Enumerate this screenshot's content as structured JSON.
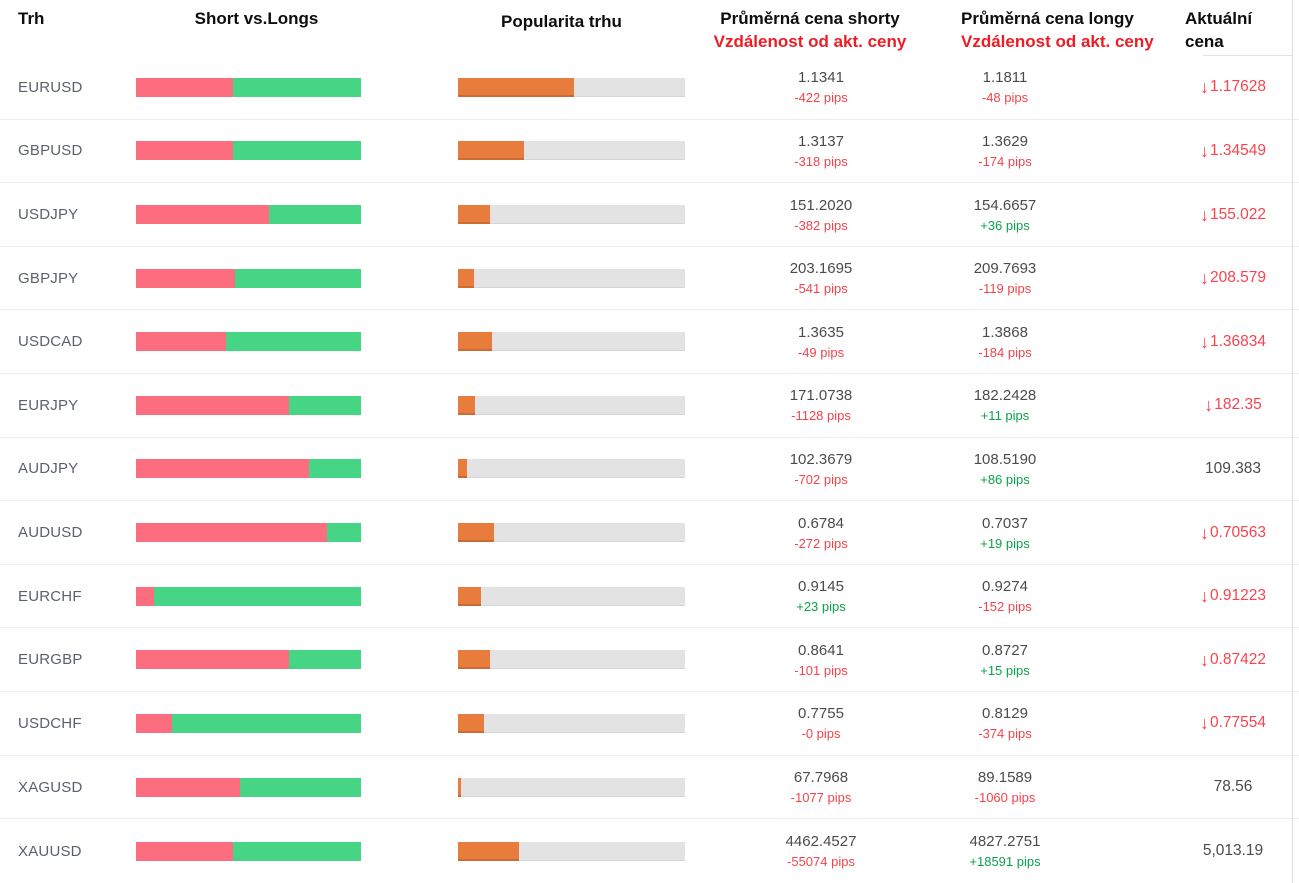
{
  "header": {
    "market": "Trh",
    "short_vs_longs": "Short vs.Longs",
    "popularity": "Popularita trhu",
    "avg_short_line1": "Průměrná cena shorty",
    "avg_short_line2": "Vzdálenost od akt. ceny",
    "avg_long_line1": "Průměrná cena longy",
    "avg_long_line2": "Vzdálenost od akt. ceny",
    "current_line1": "Aktuální",
    "current_line2": "cena"
  },
  "icons": {
    "down_arrow": "↓"
  },
  "colors": {
    "short_bar": "#fb6d7f",
    "long_bar": "#46d584",
    "popularity_bar": "#e87c3d",
    "bar_track": "#e3e3e3",
    "negative_pips": "#f4434b",
    "positive_pips": "#09a24e",
    "price_down": "#f9434e",
    "price_neutral": "#4b4b4b",
    "header_red": "#ee1c25"
  },
  "rows": [
    {
      "market": "EURUSD",
      "short_pct": 43,
      "popularity_pct": 51,
      "avg_short_price": "1.1341",
      "short_distance": "-422 pips",
      "short_distance_color": "red",
      "avg_long_price": "1.1811",
      "long_distance": "-48 pips",
      "long_distance_color": "red",
      "current_price": "1.17628",
      "current_trend": "down"
    },
    {
      "market": "GBPUSD",
      "short_pct": 43,
      "popularity_pct": 29,
      "avg_short_price": "1.3137",
      "short_distance": "-318 pips",
      "short_distance_color": "red",
      "avg_long_price": "1.3629",
      "long_distance": "-174 pips",
      "long_distance_color": "red",
      "current_price": "1.34549",
      "current_trend": "down"
    },
    {
      "market": "USDJPY",
      "short_pct": 59,
      "popularity_pct": 14,
      "avg_short_price": "151.2020",
      "short_distance": "-382 pips",
      "short_distance_color": "red",
      "avg_long_price": "154.6657",
      "long_distance": "+36 pips",
      "long_distance_color": "green",
      "current_price": "155.022",
      "current_trend": "down"
    },
    {
      "market": "GBPJPY",
      "short_pct": 44,
      "popularity_pct": 7,
      "avg_short_price": "203.1695",
      "short_distance": "-541 pips",
      "short_distance_color": "red",
      "avg_long_price": "209.7693",
      "long_distance": "-119 pips",
      "long_distance_color": "red",
      "current_price": "208.579",
      "current_trend": "down"
    },
    {
      "market": "USDCAD",
      "short_pct": 40,
      "popularity_pct": 15,
      "avg_short_price": "1.3635",
      "short_distance": "-49 pips",
      "short_distance_color": "red",
      "avg_long_price": "1.3868",
      "long_distance": "-184 pips",
      "long_distance_color": "red",
      "current_price": "1.36834",
      "current_trend": "down"
    },
    {
      "market": "EURJPY",
      "short_pct": 68,
      "popularity_pct": 7.5,
      "avg_short_price": "171.0738",
      "short_distance": "-1128 pips",
      "short_distance_color": "red",
      "avg_long_price": "182.2428",
      "long_distance": "+11 pips",
      "long_distance_color": "green",
      "current_price": "182.35",
      "current_trend": "down"
    },
    {
      "market": "AUDJPY",
      "short_pct": 77,
      "popularity_pct": 4,
      "avg_short_price": "102.3679",
      "short_distance": "-702 pips",
      "short_distance_color": "red",
      "avg_long_price": "108.5190",
      "long_distance": "+86 pips",
      "long_distance_color": "green",
      "current_price": "109.383",
      "current_trend": "flat"
    },
    {
      "market": "AUDUSD",
      "short_pct": 85,
      "popularity_pct": 16,
      "avg_short_price": "0.6784",
      "short_distance": "-272 pips",
      "short_distance_color": "red",
      "avg_long_price": "0.7037",
      "long_distance": "+19 pips",
      "long_distance_color": "green",
      "current_price": "0.70563",
      "current_trend": "down"
    },
    {
      "market": "EURCHF",
      "short_pct": 8,
      "popularity_pct": 10,
      "avg_short_price": "0.9145",
      "short_distance": "+23 pips",
      "short_distance_color": "green",
      "avg_long_price": "0.9274",
      "long_distance": "-152 pips",
      "long_distance_color": "red",
      "current_price": "0.91223",
      "current_trend": "down"
    },
    {
      "market": "EURGBP",
      "short_pct": 68,
      "popularity_pct": 14,
      "avg_short_price": "0.8641",
      "short_distance": "-101 pips",
      "short_distance_color": "red",
      "avg_long_price": "0.8727",
      "long_distance": "+15 pips",
      "long_distance_color": "green",
      "current_price": "0.87422",
      "current_trend": "down"
    },
    {
      "market": "USDCHF",
      "short_pct": 16,
      "popularity_pct": 11.5,
      "avg_short_price": "0.7755",
      "short_distance": "-0 pips",
      "short_distance_color": "red",
      "avg_long_price": "0.8129",
      "long_distance": "-374 pips",
      "long_distance_color": "red",
      "current_price": "0.77554",
      "current_trend": "down"
    },
    {
      "market": "XAGUSD",
      "short_pct": 46,
      "popularity_pct": 1.5,
      "avg_short_price": "67.7968",
      "short_distance": "-1077 pips",
      "short_distance_color": "red",
      "avg_long_price": "89.1589",
      "long_distance": "-1060 pips",
      "long_distance_color": "red",
      "current_price": "78.56",
      "current_trend": "flat"
    },
    {
      "market": "XAUUSD",
      "short_pct": 43,
      "popularity_pct": 27,
      "avg_short_price": "4462.4527",
      "short_distance": "-55074 pips",
      "short_distance_color": "red",
      "avg_long_price": "4827.2751",
      "long_distance": "+18591 pips",
      "long_distance_color": "green",
      "current_price": "5,013.19",
      "current_trend": "flat"
    }
  ]
}
